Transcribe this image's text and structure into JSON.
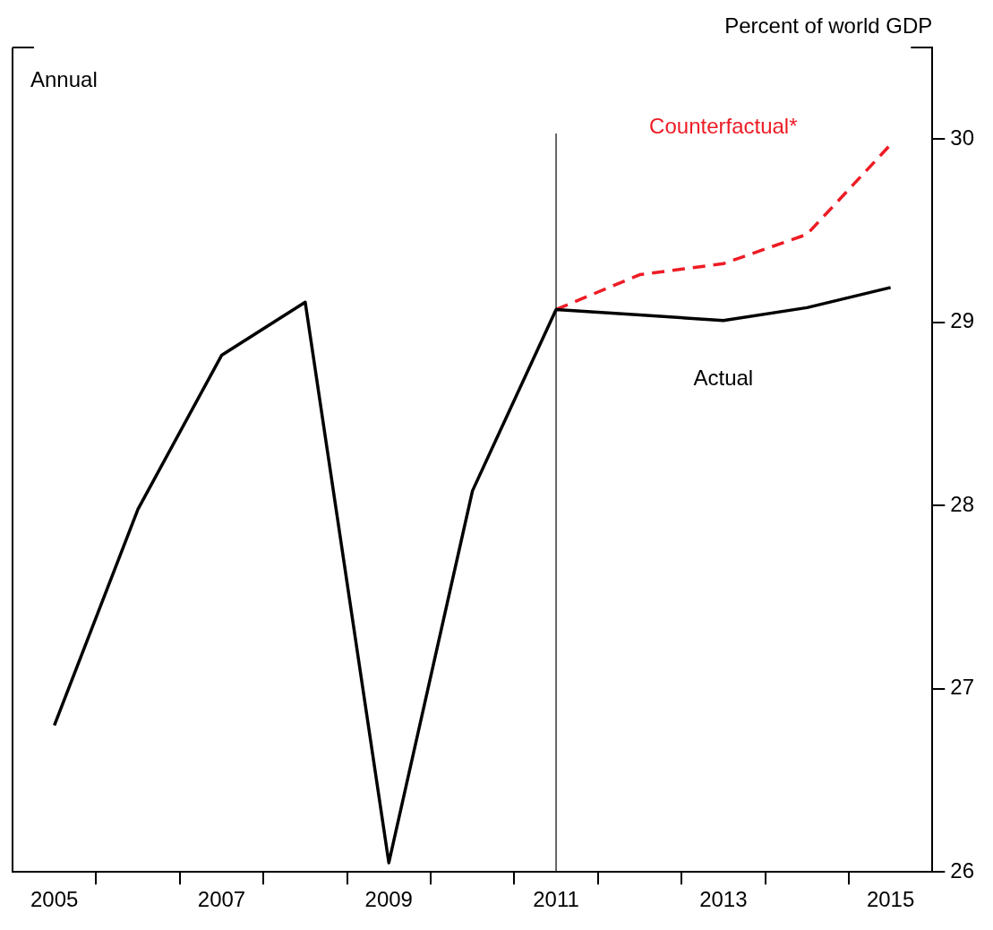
{
  "chart_data": {
    "type": "line",
    "ylabel": "Percent of world GDP",
    "annotations": [
      "Annual"
    ],
    "xlim": [
      2004.5,
      2015.5
    ],
    "xticks": [
      2005,
      {
        "value": 2005.5,
        "label": null
      },
      {
        "value": 2006.5,
        "label": null
      },
      2007,
      {
        "value": 2007.5,
        "label": null
      },
      {
        "value": 2008.5,
        "label": null
      },
      2009,
      {
        "value": 2009.5,
        "label": null
      },
      {
        "value": 2010.5,
        "label": null
      },
      2011,
      {
        "value": 2011.5,
        "label": null
      },
      {
        "value": 2012.5,
        "label": null
      },
      2013,
      {
        "value": 2013.5,
        "label": null
      },
      {
        "value": 2014.5,
        "label": null
      },
      2015
    ],
    "ylim": [
      26,
      30.5
    ],
    "yticks": [
      26,
      27,
      28,
      29,
      30
    ],
    "grid": false,
    "legend": false,
    "ref_lines": [
      {
        "axis": "x",
        "value": 2011,
        "color": "#000000"
      }
    ],
    "series": [
      {
        "name": "Actual",
        "color": "#000000",
        "line_style": "solid",
        "x": [
          2005,
          2006,
          2007,
          2008,
          2009,
          2010,
          2011,
          2012,
          2013,
          2014,
          2015
        ],
        "values": [
          26.8,
          27.98,
          28.82,
          29.11,
          26.05,
          28.08,
          29.07,
          29.04,
          29.01,
          29.08,
          29.19
        ]
      },
      {
        "name": "Counterfactual*",
        "color": "#ee1c25",
        "line_style": "dashed",
        "x": [
          2011,
          2012,
          2013,
          2014,
          2015
        ],
        "values": [
          29.07,
          29.26,
          29.32,
          29.48,
          29.97
        ]
      }
    ]
  }
}
